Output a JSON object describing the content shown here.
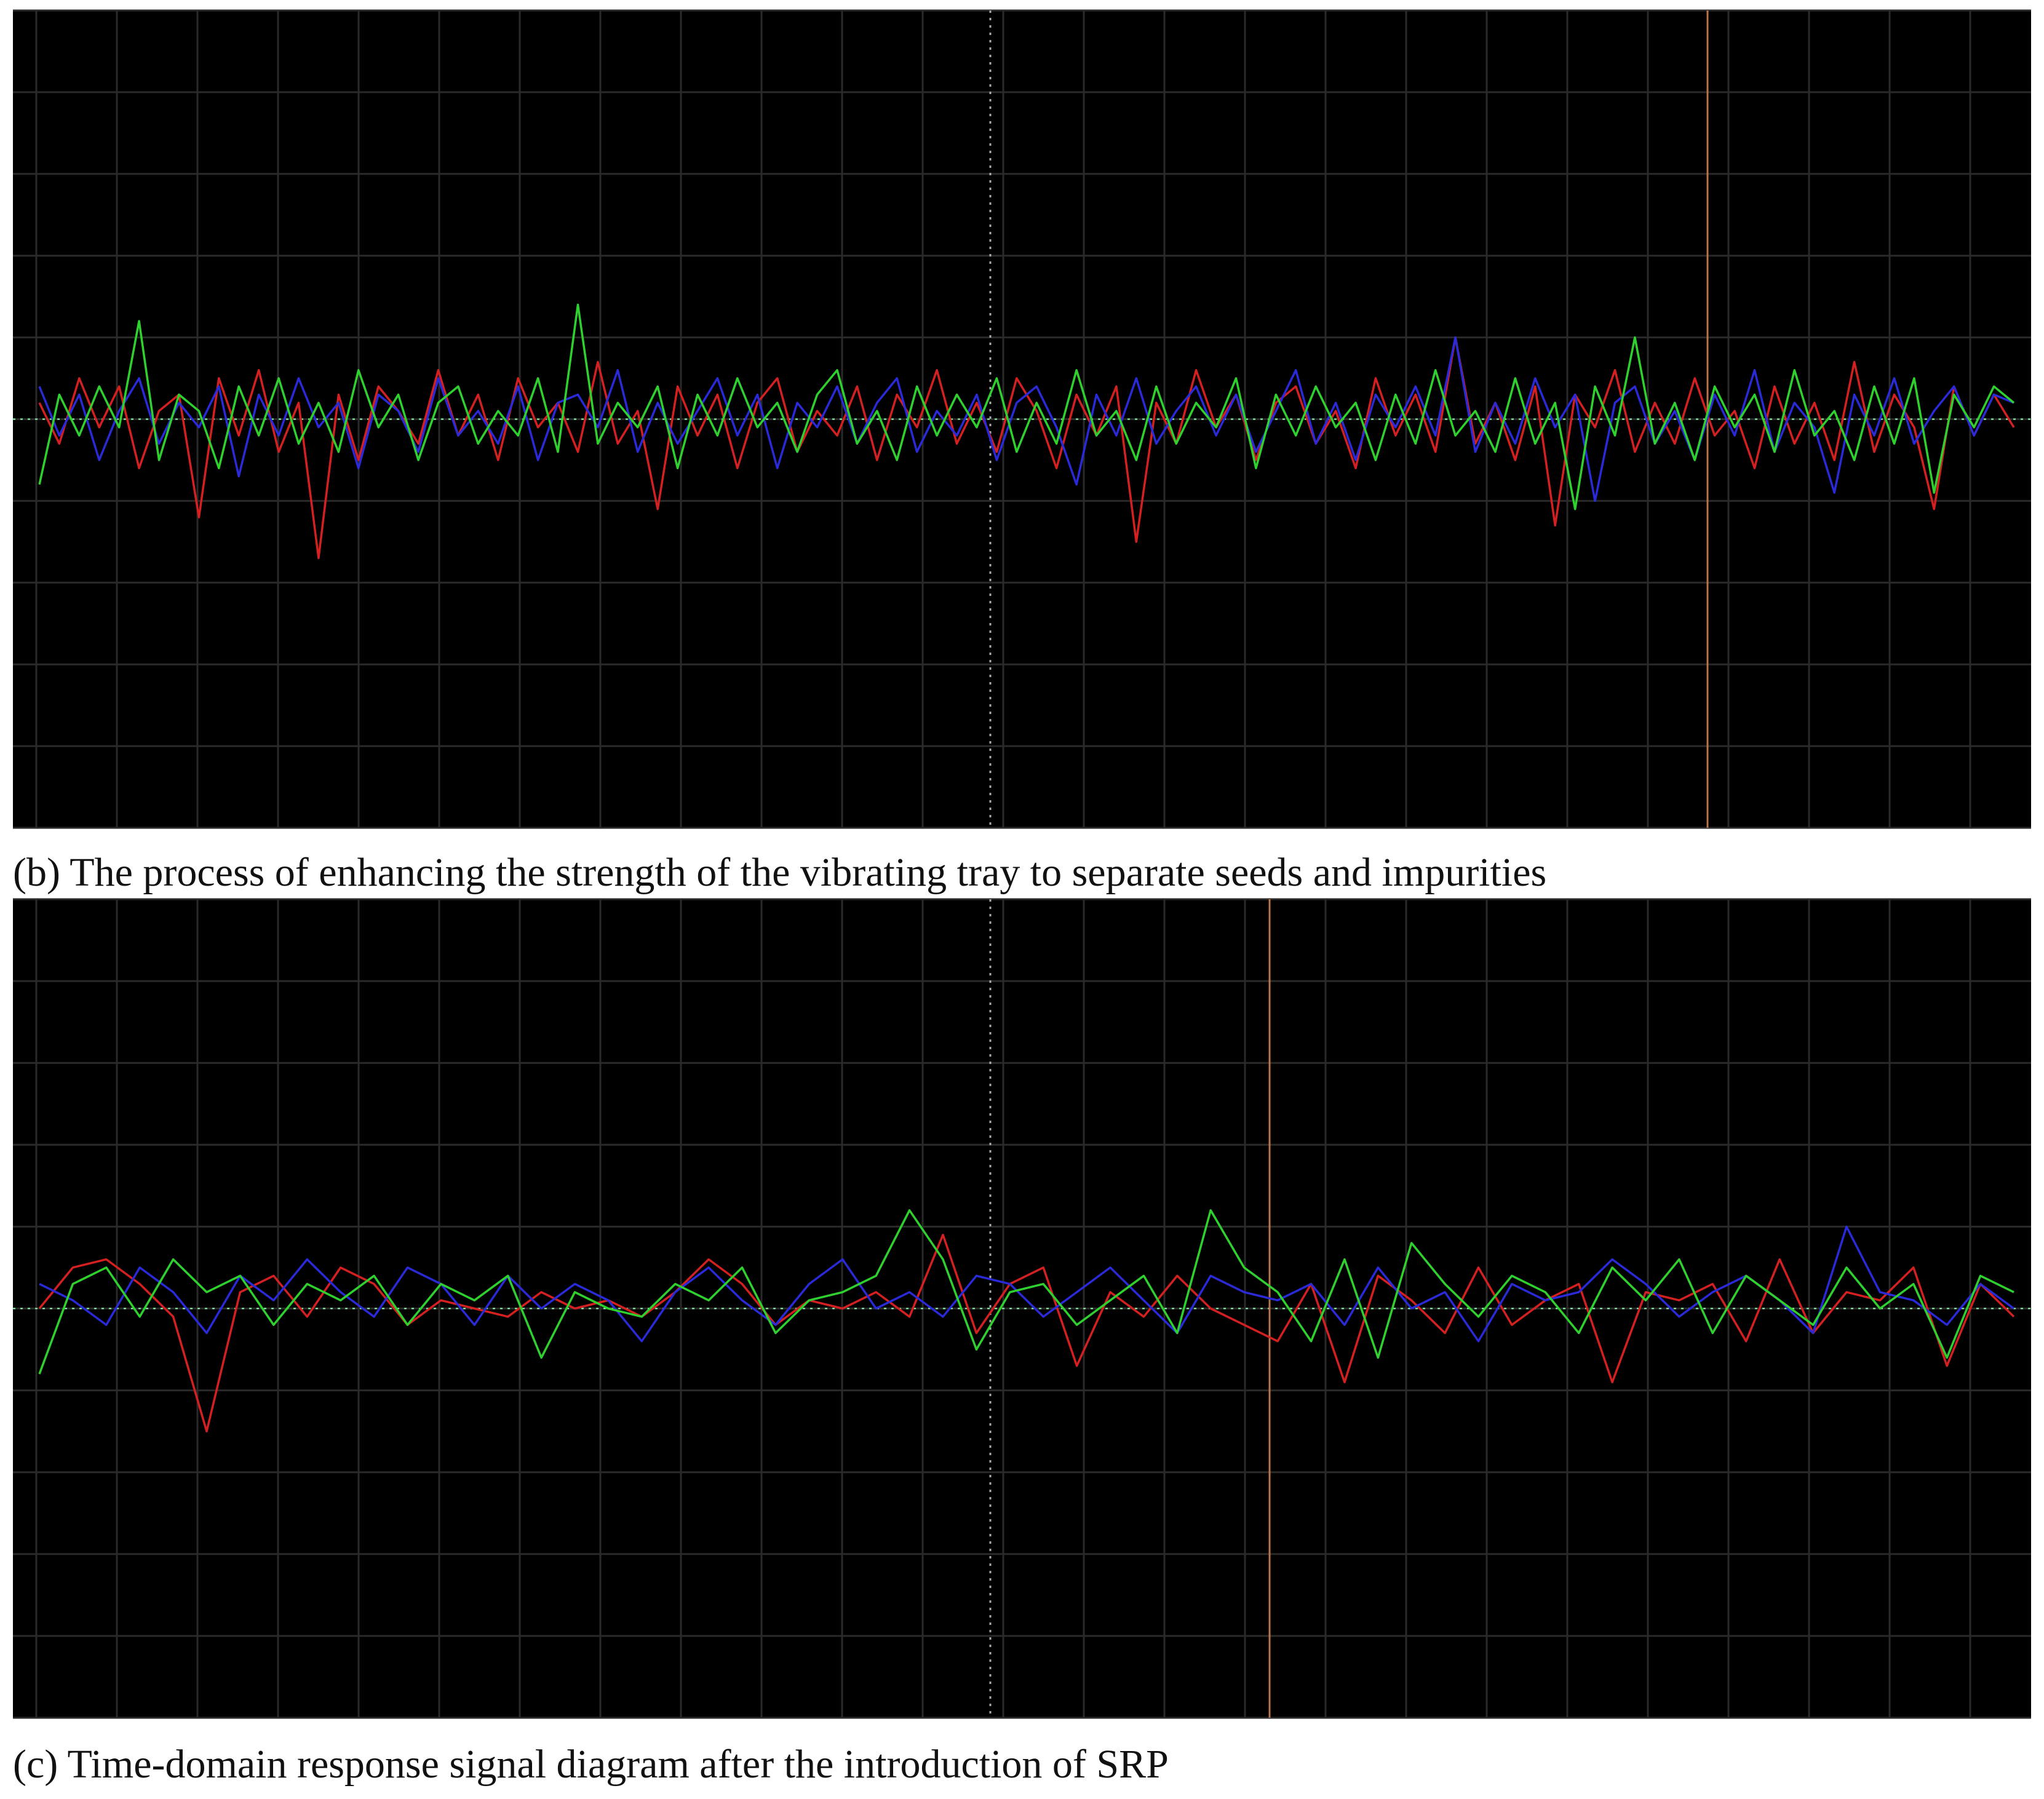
{
  "chart_data": [
    {
      "type": "line",
      "caption": "(b) The process of enhancing the strength of the vibrating tray to separate seeds and impurities",
      "ylim": [
        -5,
        5
      ],
      "grid": true,
      "series": [
        {
          "color": "#d42020",
          "values": [
            0.2,
            -0.3,
            0.5,
            -0.1,
            0.4,
            -0.6,
            0.1,
            0.3,
            -1.2,
            0.5,
            -0.2,
            0.6,
            -0.4,
            0.2,
            -1.7,
            0.3,
            -0.5,
            0.4,
            0.1,
            -0.3,
            0.6,
            -0.2,
            0.3,
            -0.5,
            0.5,
            -0.1,
            0.2,
            -0.4,
            0.7,
            -0.3,
            0.1,
            -1.1,
            0.4,
            -0.2,
            0.3,
            -0.6,
            0.2,
            0.5,
            -0.4,
            0.1,
            -0.2,
            0.4,
            -0.5,
            0.3,
            -0.1,
            0.6,
            -0.3,
            0.2,
            -0.4,
            0.5,
            0.1,
            -0.6,
            0.3,
            -0.2,
            0.4,
            -1.5,
            0.2,
            -0.3,
            0.6,
            -0.1,
            0.3,
            -0.5,
            0.2,
            0.4,
            -0.3,
            0.1,
            -0.6,
            0.5,
            -0.2,
            0.3,
            -0.4,
            1.0,
            -0.3,
            0.2,
            -0.5,
            0.4,
            -1.3,
            0.3,
            -0.1,
            0.6,
            -0.4,
            0.2,
            -0.3,
            0.5,
            -0.2,
            0.1,
            -0.6,
            0.4,
            -0.3,
            0.2,
            -0.5,
            0.7,
            -0.4,
            0.3,
            -0.1,
            -1.1,
            0.4,
            -0.2,
            0.3,
            -0.1
          ]
        },
        {
          "color": "#2a2ad8",
          "values": [
            0.4,
            -0.2,
            0.3,
            -0.5,
            0.1,
            0.5,
            -0.3,
            0.2,
            -0.1,
            0.4,
            -0.7,
            0.3,
            -0.2,
            0.5,
            -0.1,
            0.2,
            -0.6,
            0.3,
            0.1,
            -0.4,
            0.5,
            -0.2,
            0.1,
            -0.3,
            0.4,
            -0.5,
            0.2,
            0.3,
            -0.1,
            0.6,
            -0.4,
            0.2,
            -0.3,
            0.1,
            0.5,
            -0.2,
            0.3,
            -0.6,
            0.2,
            -0.1,
            0.4,
            -0.3,
            0.2,
            0.5,
            -0.4,
            0.1,
            -0.2,
            0.3,
            -0.5,
            0.2,
            0.4,
            -0.1,
            -0.8,
            0.3,
            -0.2,
            0.5,
            -0.3,
            0.1,
            0.4,
            -0.2,
            0.3,
            -0.4,
            0.1,
            0.6,
            -0.3,
            0.2,
            -0.5,
            0.3,
            -0.1,
            0.4,
            -0.2,
            1.0,
            -0.4,
            0.2,
            -0.3,
            0.5,
            -0.1,
            0.3,
            -1.0,
            0.2,
            0.4,
            -0.3,
            0.1,
            -0.5,
            0.3,
            -0.2,
            0.6,
            -0.4,
            0.2,
            -0.1,
            -0.9,
            0.3,
            -0.2,
            0.5,
            -0.3,
            0.1,
            0.4,
            -0.2,
            0.3,
            0.2
          ]
        },
        {
          "color": "#2ed12e",
          "values": [
            -0.8,
            0.3,
            -0.2,
            0.4,
            -0.1,
            1.2,
            -0.5,
            0.3,
            0.1,
            -0.6,
            0.4,
            -0.2,
            0.5,
            -0.3,
            0.2,
            -0.4,
            0.6,
            -0.1,
            0.3,
            -0.5,
            0.2,
            0.4,
            -0.3,
            0.1,
            -0.2,
            0.5,
            -0.4,
            1.4,
            -0.3,
            0.2,
            -0.1,
            0.4,
            -0.6,
            0.3,
            -0.2,
            0.5,
            -0.1,
            0.2,
            -0.4,
            0.3,
            0.6,
            -0.3,
            0.1,
            -0.5,
            0.4,
            -0.2,
            0.3,
            -0.1,
            0.5,
            -0.4,
            0.2,
            -0.3,
            0.6,
            -0.2,
            0.1,
            -0.5,
            0.4,
            -0.3,
            0.2,
            -0.1,
            0.5,
            -0.6,
            0.3,
            -0.2,
            0.4,
            -0.1,
            0.2,
            -0.5,
            0.3,
            -0.3,
            0.6,
            -0.2,
            0.1,
            -0.4,
            0.5,
            -0.3,
            0.2,
            -1.1,
            0.4,
            -0.2,
            1.0,
            -0.3,
            0.2,
            -0.5,
            0.4,
            -0.1,
            0.3,
            -0.4,
            0.6,
            -0.2,
            0.1,
            -0.5,
            0.4,
            -0.3,
            0.5,
            -0.9,
            0.3,
            -0.1,
            0.4,
            0.2
          ]
        }
      ]
    },
    {
      "type": "line",
      "caption": "(c) Time-domain response signal diagram after the introduction of SRP",
      "ylim": [
        -5,
        5
      ],
      "grid": true,
      "series": [
        {
          "color": "#d42020",
          "values": [
            0,
            0.5,
            0.6,
            0.3,
            -0.1,
            -1.5,
            0.2,
            0.4,
            -0.1,
            0.5,
            0.3,
            -0.2,
            0.1,
            0,
            -0.1,
            0.2,
            0,
            0.1,
            -0.1,
            0.2,
            0.6,
            0.3,
            -0.2,
            0.1,
            0,
            0.2,
            -0.1,
            0.9,
            -0.3,
            0.3,
            0.5,
            -0.7,
            0.2,
            -0.1,
            0.4,
            0,
            -0.2,
            -0.4,
            0.3,
            -0.9,
            0.4,
            0.1,
            -0.3,
            0.5,
            -0.2,
            0.1,
            0.3,
            -0.9,
            0.2,
            0.1,
            0.3,
            -0.4,
            0.6,
            -0.3,
            0.2,
            0.1,
            0.5,
            -0.7,
            0.3,
            -0.1
          ]
        },
        {
          "color": "#2a2ad8",
          "values": [
            0.3,
            0.1,
            -0.2,
            0.5,
            0.2,
            -0.3,
            0.4,
            0.1,
            0.6,
            0.2,
            -0.1,
            0.5,
            0.3,
            -0.2,
            0.4,
            0,
            0.3,
            0.1,
            -0.4,
            0.2,
            0.5,
            0.1,
            -0.2,
            0.3,
            0.6,
            0,
            0.2,
            -0.1,
            0.4,
            0.3,
            -0.1,
            0.2,
            0.5,
            0.1,
            -0.3,
            0.4,
            0.2,
            0.1,
            0.3,
            -0.2,
            0.5,
            0,
            0.2,
            -0.4,
            0.3,
            0.1,
            0.2,
            0.6,
            0.3,
            -0.1,
            0.2,
            0.4,
            0.1,
            -0.3,
            1.0,
            0.2,
            0.1,
            -0.2,
            0.3,
            0
          ]
        },
        {
          "color": "#2ed12e",
          "values": [
            -0.8,
            0.3,
            0.5,
            -0.1,
            0.6,
            0.2,
            0.4,
            -0.2,
            0.3,
            0.1,
            0.4,
            -0.2,
            0.3,
            0.1,
            0.4,
            -0.6,
            0.2,
            0,
            -0.1,
            0.3,
            0.1,
            0.5,
            -0.3,
            0.1,
            0.2,
            0.4,
            1.2,
            0.6,
            -0.5,
            0.2,
            0.3,
            -0.2,
            0.1,
            0.4,
            -0.3,
            1.2,
            0.5,
            0.2,
            -0.4,
            0.6,
            -0.6,
            0.8,
            0.3,
            -0.1,
            0.4,
            0.2,
            -0.3,
            0.5,
            0.1,
            0.6,
            -0.3,
            0.4,
            0.1,
            -0.2,
            0.5,
            0,
            0.3,
            -0.6,
            0.4,
            0.2
          ]
        }
      ]
    }
  ]
}
